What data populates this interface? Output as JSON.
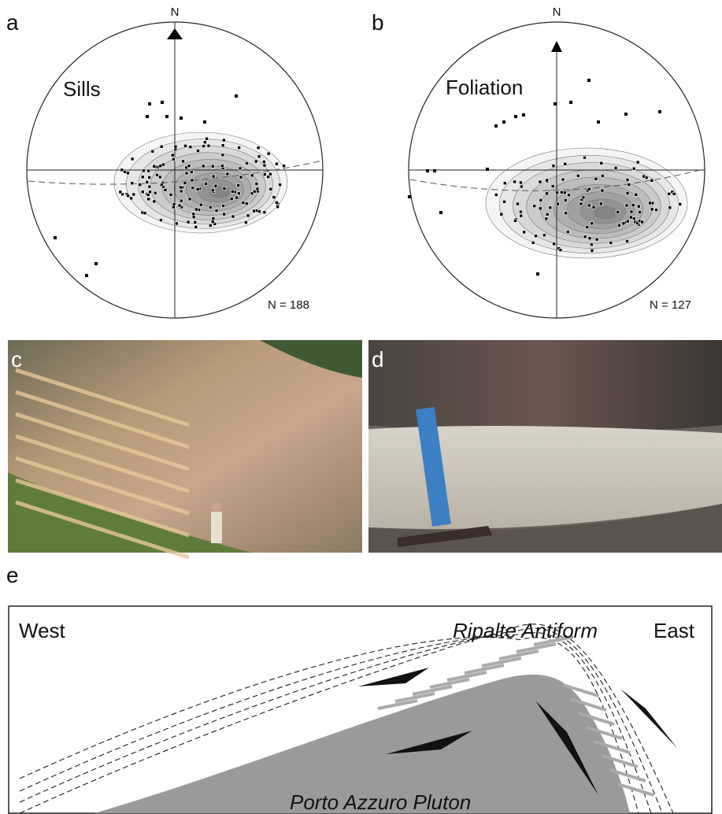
{
  "panels": {
    "a": {
      "label": "a",
      "north": "N",
      "title": "Sills",
      "count": "N = 188"
    },
    "b": {
      "label": "b",
      "north": "N",
      "title": "Foliation",
      "count": "N = 127"
    },
    "c": {
      "label": "c"
    },
    "d": {
      "label": "d"
    },
    "e": {
      "label": "e",
      "west": "West",
      "antiform": "Ripalte Antiform",
      "east": "East",
      "pluton": "Porto Azzuro Pluton"
    }
  }
}
